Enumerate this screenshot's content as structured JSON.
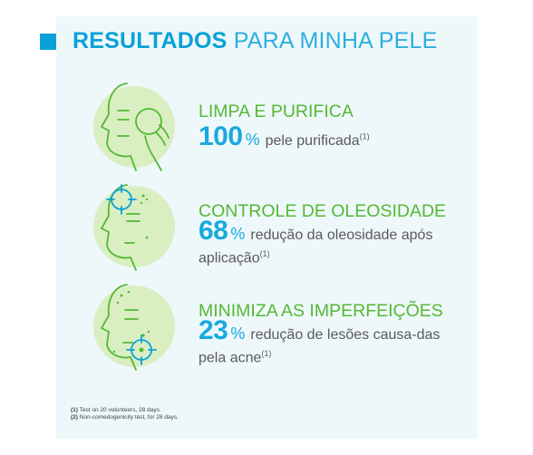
{
  "heading": {
    "bold": "RESULTADOS",
    "light": "PARA MINHA PELE"
  },
  "colors": {
    "accent_blue": "#0aa1d8",
    "green": "#56b835",
    "background": "#eef8fa",
    "circle": "#d9efc2"
  },
  "benefits": [
    {
      "icon": "face-cleansing-pad-icon",
      "title": "LIMPA E PURIFICA",
      "number": "100",
      "percent": "%",
      "description": "pele purificada",
      "ref": "(1)"
    },
    {
      "icon": "face-oil-control-target-icon",
      "title": "CONTROLE DE OLEOSIDADE",
      "number": "68",
      "percent": "%",
      "description": "redução da oleosidade após aplicação",
      "ref": "(1)"
    },
    {
      "icon": "face-blemish-target-icon",
      "title": "MINIMIZA AS IMPERFEIÇÕES",
      "number": "23",
      "percent": "%",
      "description": "redução de lesões causa-das pela acne",
      "ref": "(1)"
    }
  ],
  "footnotes": [
    {
      "marker": "(1)",
      "text": "Test on 20 volunteers, 28 days."
    },
    {
      "marker": "(2)",
      "text": "Non-comedogenicity test, for 28 days."
    }
  ]
}
